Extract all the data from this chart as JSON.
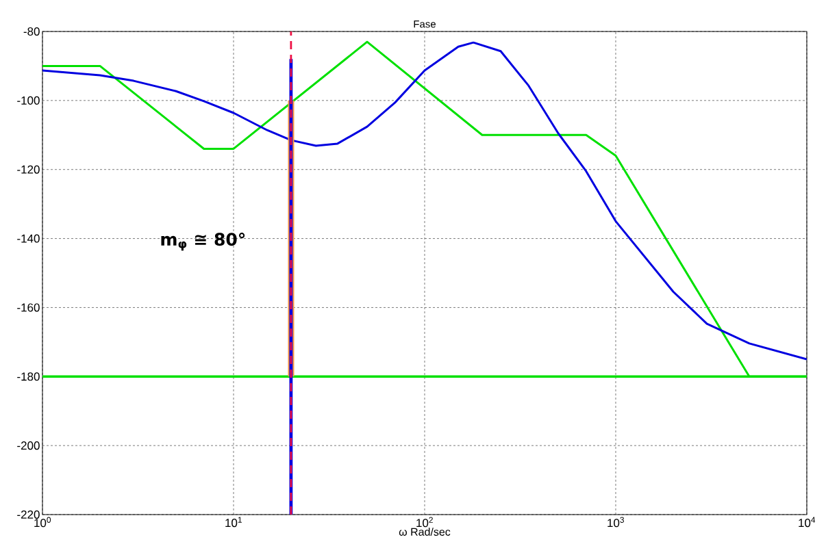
{
  "chart_data": {
    "type": "line",
    "title": "Fase",
    "xlabel": "ω Rad/sec",
    "log": "x",
    "grid": true,
    "xlim": [
      1,
      10000
    ],
    "ylim": [
      -220,
      -80
    ],
    "xticks": [
      {
        "value": 1,
        "label": "10$^{0}$"
      },
      {
        "value": 10,
        "label": "10$^{1}$"
      },
      {
        "value": 100,
        "label": "10$^{2}$"
      },
      {
        "value": 1000,
        "label": "10$^{3}$"
      },
      {
        "value": 10000,
        "label": "10$^{4}$"
      }
    ],
    "yticks": [
      -220,
      -200,
      -180,
      -160,
      -140,
      -120,
      -100,
      -80
    ],
    "series": [
      {
        "color": "#00e000",
        "x": [
          1,
          2,
          7,
          10,
          50,
          200,
          700,
          1000,
          5000,
          10000
        ],
        "values": [
          -90,
          -90,
          -114,
          -114,
          -83,
          -110,
          -110,
          -116,
          -180,
          -180
        ]
      },
      {
        "color": "#0000e0",
        "x": [
          1,
          2,
          3,
          5,
          7,
          10,
          15,
          20,
          27,
          35,
          50,
          70,
          100,
          150,
          180,
          250,
          350,
          500,
          700,
          1000,
          2000,
          3000,
          5000,
          10000
        ],
        "values": [
          -91.3,
          -92.7,
          -94.3,
          -97.3,
          -100.2,
          -103.6,
          -108.6,
          -111.5,
          -113.1,
          -112.5,
          -107.6,
          -100.6,
          -91.3,
          -84.4,
          -83.2,
          -85.7,
          -95.7,
          -109.5,
          -120.5,
          -135,
          -155.4,
          -164.7,
          -170.4,
          -175
        ]
      },
      {
        "color": "#f79646",
        "x": [
          20,
          20
        ],
        "values": [
          -180,
          -100
        ]
      },
      {
        "color": "#0000e0",
        "x": [
          20,
          20
        ],
        "values": [
          -220,
          -88
        ]
      }
    ],
    "ref_lines": [
      {
        "axis": "y",
        "value": -180,
        "color": "#00e000",
        "line_style": "solid"
      },
      {
        "axis": "x",
        "value": 20,
        "color": "#ee1144",
        "line_style": "dashed"
      }
    ],
    "annotations": [
      "**m$_{φ}$ ≅ 80°**"
    ]
  }
}
